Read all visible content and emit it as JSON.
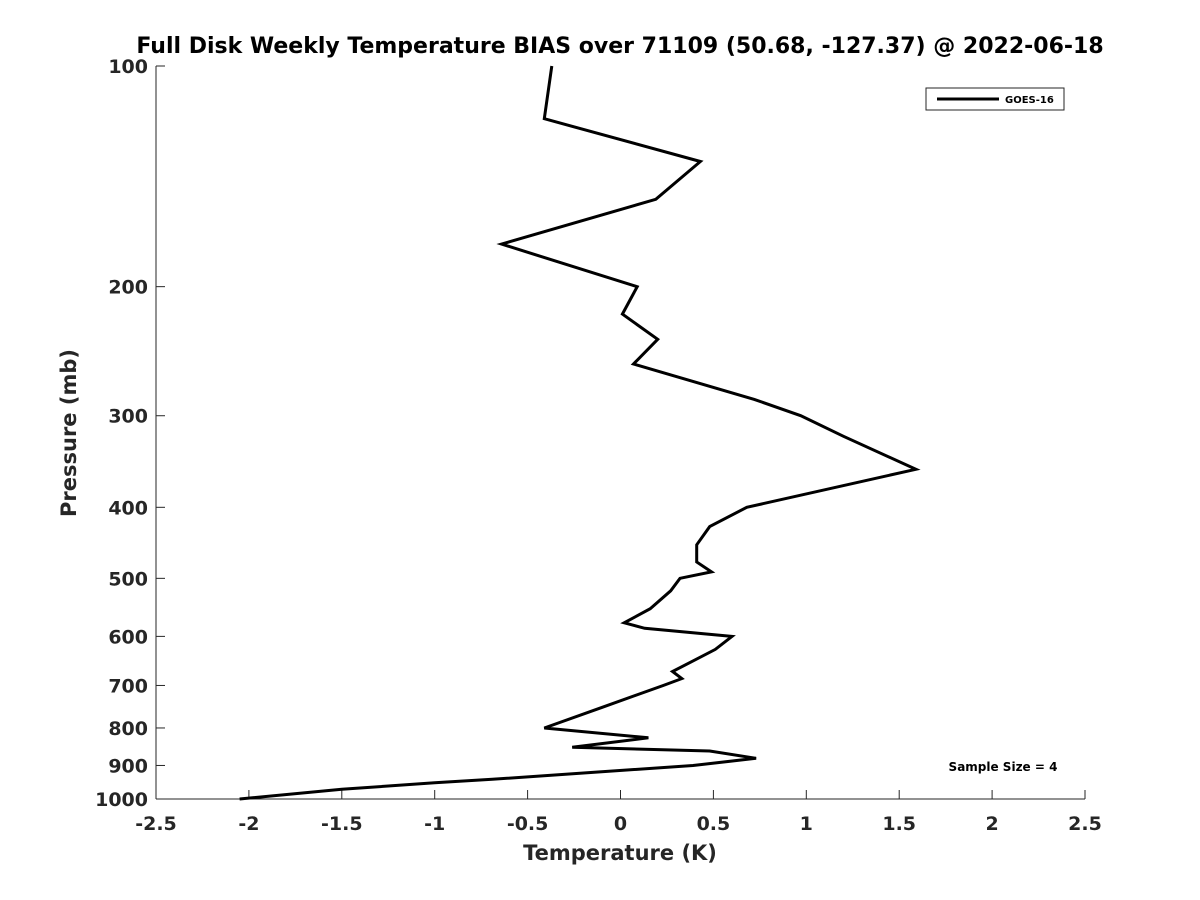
{
  "chart_data": {
    "type": "line",
    "title": "Full Disk Weekly Temperature BIAS over 71109 (50.68, -127.37) @ 2022-06-18",
    "xlabel": "Temperature (K)",
    "ylabel": "Pressure (mb)",
    "xlim": [
      -2.5,
      2.5
    ],
    "ylim": [
      100,
      1000
    ],
    "y_scale": "log",
    "y_reversed": true,
    "x_ticks": [
      -2.5,
      -2,
      -1.5,
      -1,
      -0.5,
      0,
      0.5,
      1,
      1.5,
      2,
      2.5
    ],
    "x_tick_labels": [
      "-2.5",
      "-2",
      "-1.5",
      "-1",
      "-0.5",
      "0",
      "0.5",
      "1",
      "1.5",
      "2",
      "2.5"
    ],
    "y_ticks": [
      100,
      200,
      300,
      400,
      500,
      600,
      700,
      800,
      900,
      1000
    ],
    "y_tick_labels": [
      "100",
      "200",
      "300",
      "400",
      "500",
      "600",
      "700",
      "800",
      "900",
      "1000"
    ],
    "grid": false,
    "legend_position": "top-right",
    "series": [
      {
        "name": "GOES-16",
        "color": "#000000",
        "points": [
          {
            "x": -0.37,
            "y": 100
          },
          {
            "x": -0.41,
            "y": 118
          },
          {
            "x": 0.43,
            "y": 135
          },
          {
            "x": 0.19,
            "y": 152
          },
          {
            "x": -0.64,
            "y": 175
          },
          {
            "x": 0.09,
            "y": 200
          },
          {
            "x": 0.01,
            "y": 218
          },
          {
            "x": 0.2,
            "y": 236
          },
          {
            "x": 0.07,
            "y": 255
          },
          {
            "x": 0.72,
            "y": 285
          },
          {
            "x": 0.97,
            "y": 300
          },
          {
            "x": 1.2,
            "y": 320
          },
          {
            "x": 1.59,
            "y": 355
          },
          {
            "x": 0.68,
            "y": 400
          },
          {
            "x": 0.48,
            "y": 425
          },
          {
            "x": 0.41,
            "y": 450
          },
          {
            "x": 0.41,
            "y": 475
          },
          {
            "x": 0.49,
            "y": 490
          },
          {
            "x": 0.32,
            "y": 500
          },
          {
            "x": 0.27,
            "y": 520
          },
          {
            "x": 0.16,
            "y": 550
          },
          {
            "x": 0.02,
            "y": 575
          },
          {
            "x": 0.13,
            "y": 585
          },
          {
            "x": 0.6,
            "y": 600
          },
          {
            "x": 0.51,
            "y": 625
          },
          {
            "x": 0.38,
            "y": 650
          },
          {
            "x": 0.28,
            "y": 670
          },
          {
            "x": 0.33,
            "y": 685
          },
          {
            "x": 0.23,
            "y": 700
          },
          {
            "x": -0.1,
            "y": 750
          },
          {
            "x": -0.35,
            "y": 790
          },
          {
            "x": -0.41,
            "y": 800
          },
          {
            "x": 0.15,
            "y": 825
          },
          {
            "x": -0.26,
            "y": 850
          },
          {
            "x": 0.48,
            "y": 860
          },
          {
            "x": 0.73,
            "y": 880
          },
          {
            "x": 0.39,
            "y": 900
          },
          {
            "x": -0.16,
            "y": 920
          },
          {
            "x": -0.69,
            "y": 940
          },
          {
            "x": -1.0,
            "y": 950
          },
          {
            "x": -1.5,
            "y": 970
          },
          {
            "x": -2.05,
            "y": 1000
          }
        ]
      }
    ],
    "annotations": [
      "Sample Size = 4"
    ]
  }
}
